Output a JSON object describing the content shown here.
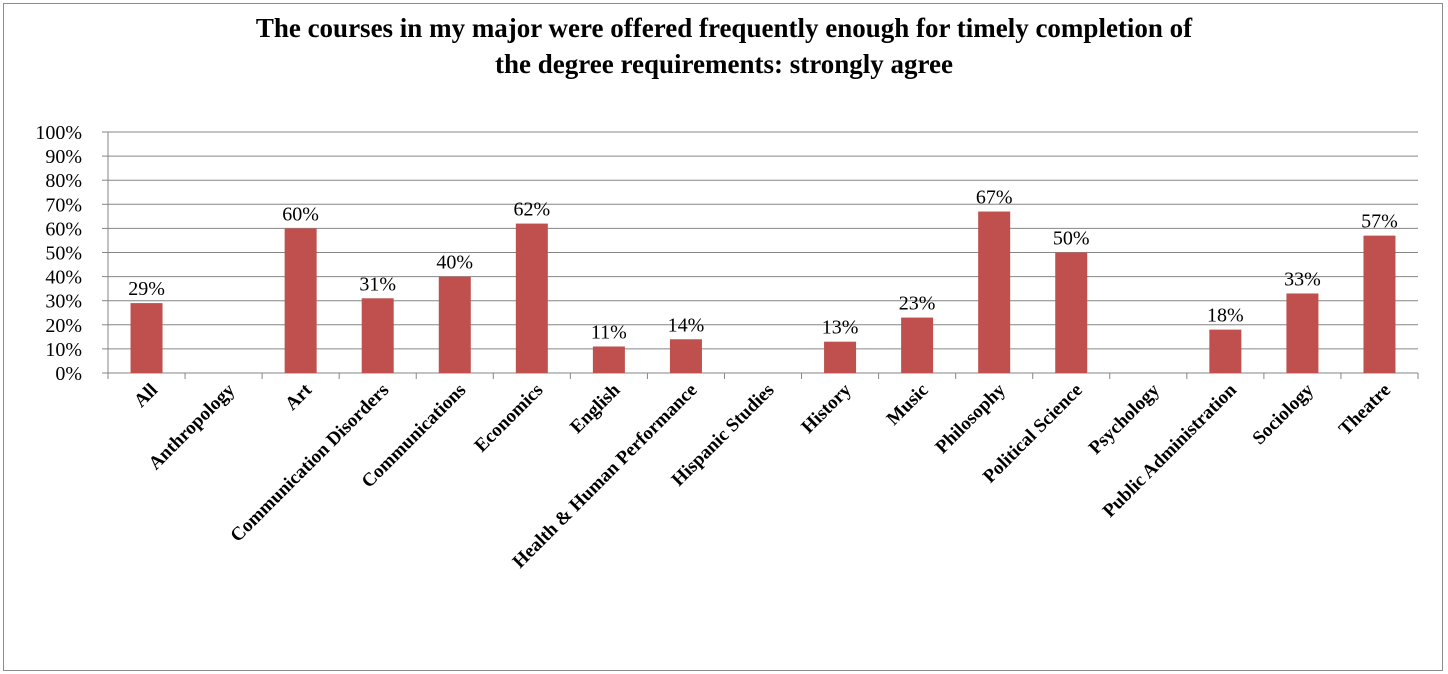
{
  "chart_data": {
    "type": "bar",
    "title_lines": [
      "The courses in my major were offered frequently enough for timely completion of",
      "the degree requirements: strongly agree"
    ],
    "categories": [
      "All",
      "Anthropology",
      "Art",
      "Communication Disorders",
      "Communications",
      "Economics",
      "English",
      "Health & Human Performance",
      "Hispanic Studies",
      "History",
      "Music",
      "Philosophy",
      "Political Science",
      "Psychology",
      "Public Administration",
      "Sociology",
      "Theatre"
    ],
    "values": [
      29,
      null,
      60,
      31,
      40,
      62,
      11,
      14,
      null,
      13,
      23,
      67,
      50,
      null,
      18,
      33,
      57
    ],
    "data_labels": [
      "29%",
      "",
      "60%",
      "31%",
      "40%",
      "62%",
      "11%",
      "14%",
      "",
      "13%",
      "23%",
      "67%",
      "50%",
      "",
      "18%",
      "33%",
      "57%"
    ],
    "ylim": [
      0,
      100
    ],
    "y_ticks": [
      "0%",
      "10%",
      "20%",
      "30%",
      "40%",
      "50%",
      "60%",
      "70%",
      "80%",
      "90%",
      "100%"
    ],
    "grid": true,
    "legend": "none",
    "bar_color": "#c0504d",
    "grid_color": "#868686"
  }
}
